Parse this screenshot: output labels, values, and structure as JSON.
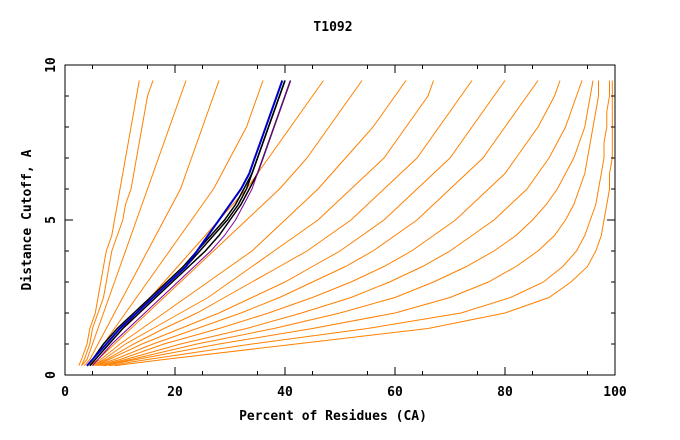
{
  "chart_data": {
    "type": "line",
    "title": "T1092",
    "xlabel": "Percent of Residues (CA)",
    "ylabel": "Distance Cutoff, A",
    "xlim": [
      0,
      100
    ],
    "ylim": [
      0,
      10
    ],
    "x_ticks": [
      0,
      20,
      40,
      60,
      80,
      100
    ],
    "y_ticks": [
      0,
      5,
      10
    ],
    "x_tick_labels": [
      "0",
      "20",
      "40",
      "60",
      "80",
      "100"
    ],
    "y_tick_labels": [
      "0",
      "5",
      "10"
    ],
    "grid": false,
    "legend": "none",
    "colors": {
      "background_models": "#ff8000",
      "black_model": "#000000",
      "blue_model": "#0000cc",
      "purple_model": "#8000a0"
    },
    "y_levels": [
      0.3,
      0.5,
      1.0,
      1.5,
      2.0,
      2.5,
      3.0,
      3.5,
      4.0,
      4.5,
      5.0,
      5.5,
      6.0,
      6.5,
      7.0,
      7.5,
      8.0,
      8.5,
      9.0,
      9.5
    ],
    "series": [
      {
        "x": [
          2.5,
          3.0,
          4.0,
          4.5,
          5.5,
          6.0,
          6.5,
          7.0,
          7.5,
          8.5,
          9.0,
          9.5,
          10.0,
          10.5,
          11.0,
          11.5,
          12.0,
          12.5,
          13.0,
          13.5
        ]
      },
      {
        "x": [
          3.0,
          3.5,
          4.5,
          5.0,
          6.0,
          7.0,
          7.5,
          8.0,
          8.5,
          9.5,
          10.5,
          11.0,
          12.0,
          12.5,
          13.0,
          13.5,
          14.0,
          14.5,
          15.0,
          16.0
        ]
      },
      {
        "x": [
          3.0,
          4.0,
          5.0,
          6.0,
          7.0,
          8.0,
          9.0,
          10.0,
          11.0,
          12.0,
          13.0,
          14.0,
          15.0,
          16.0,
          17.0,
          18.0,
          19.0,
          20.0,
          21.0,
          22.0
        ]
      },
      {
        "x": [
          3.5,
          4.5,
          6.0,
          7.5,
          9.0,
          10.5,
          12.0,
          13.5,
          15.0,
          16.5,
          18.0,
          19.5,
          21.0,
          22.0,
          23.0,
          24.0,
          25.0,
          26.0,
          27.0,
          28.0
        ]
      },
      {
        "x": [
          4.0,
          5.0,
          7.0,
          9.0,
          11.0,
          13.0,
          15.0,
          17.0,
          19.0,
          21.0,
          23.0,
          25.0,
          27.0,
          28.5,
          30.0,
          31.5,
          33.0,
          34.0,
          35.0,
          36.0
        ]
      },
      {
        "x": [
          4.0,
          5.5,
          8.0,
          10.5,
          13.0,
          15.5,
          18.0,
          20.5,
          23.0,
          25.5,
          28.0,
          30.5,
          33.0,
          35.0,
          37.0,
          39.0,
          41.0,
          43.0,
          45.0,
          47.0
        ]
      },
      {
        "x": [
          4.5,
          6.0,
          9.0,
          12.0,
          15.0,
          18.0,
          21.0,
          24.0,
          27.0,
          30.0,
          33.0,
          36.0,
          39.0,
          41.5,
          44.0,
          46.0,
          48.0,
          50.0,
          52.0,
          54.0
        ]
      },
      {
        "x": [
          4.5,
          6.5,
          10.0,
          14.0,
          18.0,
          22.0,
          26.0,
          30.0,
          34.0,
          37.0,
          40.0,
          43.0,
          46.0,
          48.5,
          51.0,
          53.5,
          56.0,
          58.0,
          60.0,
          62.0
        ]
      },
      {
        "x": [
          5.0,
          7.0,
          11.0,
          16.0,
          21.0,
          26.0,
          30.0,
          34.0,
          38.0,
          42.0,
          46.0,
          49.0,
          52.0,
          55.0,
          58.0,
          60.0,
          62.0,
          64.0,
          66.0,
          67.0
        ]
      },
      {
        "x": [
          5.0,
          7.5,
          12.5,
          18.0,
          24.0,
          29.0,
          34.0,
          39.0,
          44.0,
          48.0,
          52.0,
          55.0,
          58.0,
          61.0,
          64.0,
          66.0,
          68.0,
          70.0,
          72.0,
          74.0
        ]
      },
      {
        "x": [
          5.5,
          8.0,
          14.0,
          21.0,
          28.0,
          34.0,
          40.0,
          45.0,
          50.0,
          54.0,
          58.0,
          61.0,
          64.0,
          67.0,
          70.0,
          72.0,
          74.0,
          76.0,
          78.0,
          80.0
        ]
      },
      {
        "x": [
          5.5,
          9.0,
          16.0,
          24.0,
          32.0,
          39.0,
          45.0,
          51.0,
          56.0,
          60.0,
          64.0,
          67.0,
          70.0,
          73.0,
          76.0,
          78.0,
          80.0,
          82.0,
          84.0,
          86.0
        ]
      },
      {
        "x": [
          6.0,
          10.0,
          18.0,
          28.0,
          37.0,
          45.0,
          52.0,
          58.0,
          63.0,
          67.0,
          71.0,
          74.0,
          77.0,
          80.0,
          82.0,
          84.0,
          86.0,
          87.5,
          89.0,
          90.0
        ]
      },
      {
        "x": [
          6.5,
          11.0,
          21.0,
          33.0,
          43.0,
          52.0,
          59.0,
          65.0,
          70.0,
          74.0,
          78.0,
          81.0,
          84.0,
          86.0,
          88.0,
          89.5,
          91.0,
          92.0,
          93.0,
          94.0
        ]
      },
      {
        "x": [
          7.0,
          12.0,
          24.0,
          38.0,
          50.0,
          60.0,
          67.0,
          73.0,
          78.0,
          82.0,
          85.0,
          87.5,
          89.5,
          91.0,
          92.5,
          93.5,
          94.5,
          95.0,
          95.5,
          96.0
        ]
      },
      {
        "x": [
          7.0,
          13.0,
          28.0,
          45.0,
          60.0,
          70.0,
          77.0,
          82.0,
          86.0,
          89.0,
          91.0,
          92.5,
          93.5,
          94.5,
          95.0,
          95.5,
          96.0,
          96.5,
          97.0,
          97.0
        ]
      },
      {
        "x": [
          8.0,
          15.0,
          34.0,
          55.0,
          72.0,
          81.0,
          87.0,
          90.5,
          93.0,
          94.5,
          95.5,
          96.5,
          97.0,
          97.5,
          98.0,
          98.0,
          98.5,
          98.5,
          99.0,
          99.0
        ]
      },
      {
        "x": [
          9.0,
          18.0,
          42.0,
          66.0,
          80.0,
          88.0,
          92.0,
          95.0,
          96.5,
          97.5,
          98.0,
          98.5,
          99.0,
          99.0,
          99.5,
          99.5,
          99.5,
          99.5,
          99.5,
          99.5
        ]
      },
      {
        "x": [
          4.0,
          5.0,
          7.5,
          10.0,
          13.0,
          16.0,
          19.0,
          22.0,
          24.5,
          27.0,
          29.5,
          31.5,
          33.0,
          34.0,
          35.0,
          36.0,
          37.0,
          38.0,
          39.0,
          40.0
        ]
      },
      {
        "x": [
          4.0,
          5.0,
          7.0,
          9.5,
          12.5,
          15.5,
          18.5,
          21.5,
          24.0,
          26.5,
          29.0,
          31.0,
          32.5,
          34.0,
          35.0,
          36.0,
          37.0,
          38.0,
          39.0,
          40.0
        ]
      },
      {
        "x": [
          4.5,
          5.5,
          8.0,
          10.5,
          13.5,
          16.5,
          19.5,
          22.5,
          25.5,
          28.0,
          30.0,
          32.0,
          33.5,
          35.0,
          36.0,
          37.0,
          38.0,
          39.0,
          40.0,
          41.0
        ]
      },
      {
        "x": [
          5.0,
          6.0,
          8.5,
          11.5,
          14.5,
          17.5,
          20.5,
          23.5,
          26.5,
          29.0,
          31.0,
          32.5,
          34.0,
          35.0,
          36.0,
          37.0,
          38.0,
          39.0,
          40.0,
          41.0
        ]
      },
      {
        "x": [
          4.0,
          5.0,
          7.5,
          10.0,
          13.0,
          16.0,
          19.0,
          22.0,
          24.0,
          26.0,
          28.0,
          30.0,
          32.0,
          33.5,
          34.5,
          35.5,
          36.5,
          37.5,
          38.5,
          39.5
        ]
      }
    ]
  }
}
